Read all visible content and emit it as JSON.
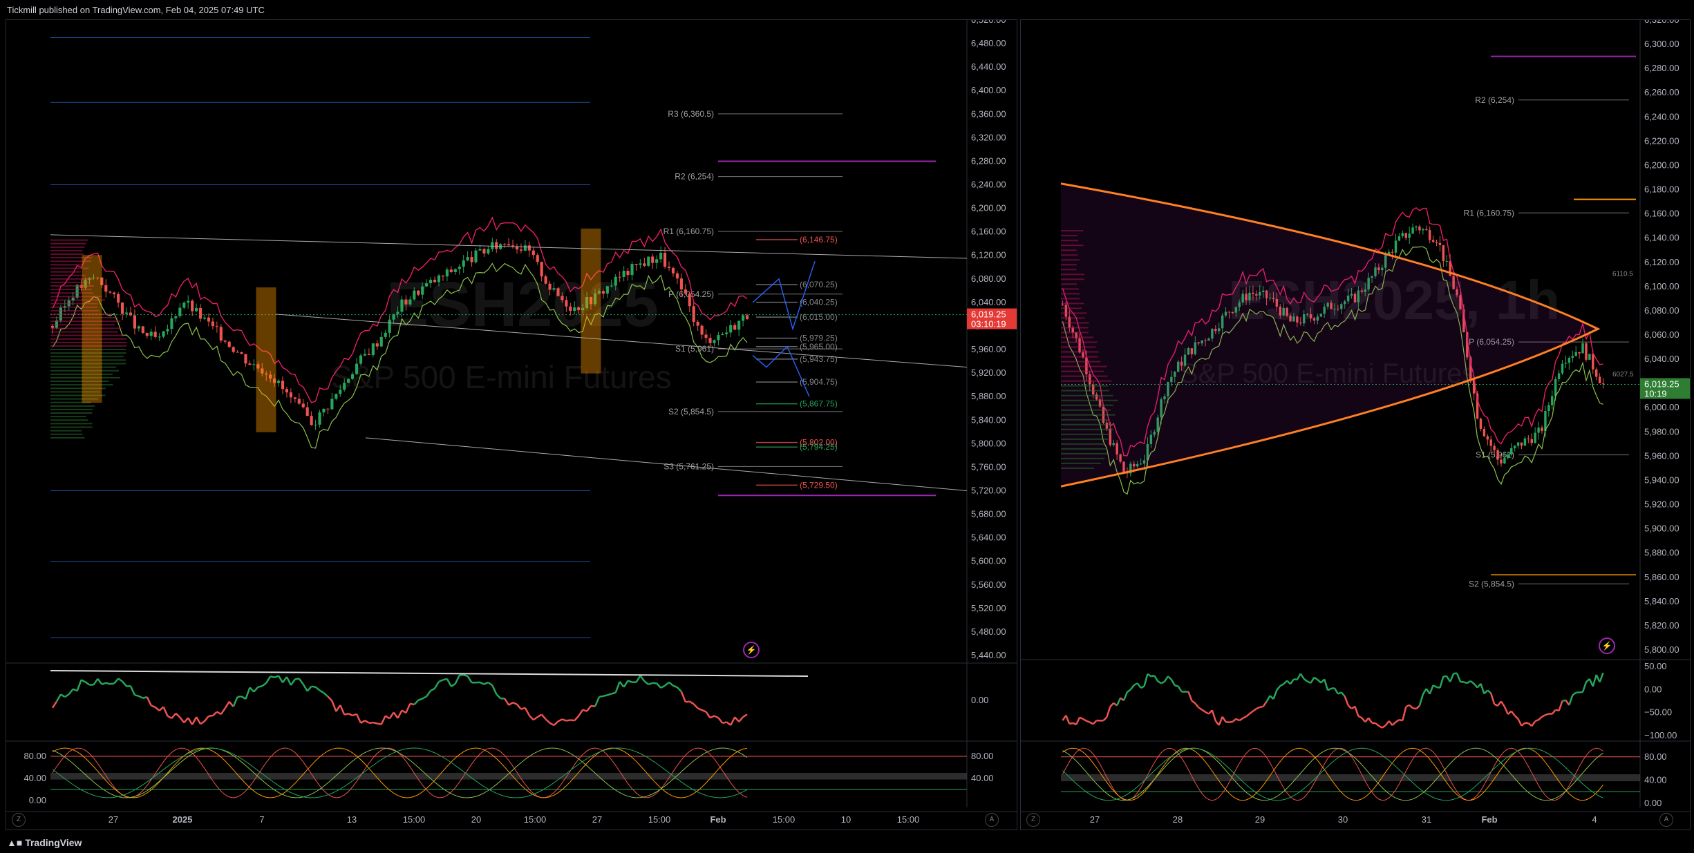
{
  "header": {
    "publisher": "Tickmill published on TradingView.com, Feb 04, 2025 07:49 UTC"
  },
  "footer": {
    "brand": "TradingView"
  },
  "colors": {
    "up": "#26a65b",
    "down": "#ef5350",
    "pivot": "#a9a9a9",
    "accent_orange": "#ff9800",
    "accent_magenta": "#e91e63",
    "accent_purple": "#9c27b0",
    "blue": "#2962ff"
  },
  "left_chart": {
    "watermark_symbol": "ESH2025",
    "watermark_name": "S&P 500 E-mini Futures",
    "price_labels": [
      "6,520.00",
      "6,480.00",
      "6,440.00",
      "6,400.00",
      "6,360.00",
      "6,320.00",
      "6,280.00",
      "6,240.00",
      "6,200.00",
      "6,160.00",
      "6,120.00",
      "6,080.00",
      "6,040.00",
      "6,000.00",
      "5,960.00",
      "5,920.00",
      "5,880.00",
      "5,840.00",
      "5,800.00",
      "5,760.00",
      "5,720.00",
      "5,680.00",
      "5,640.00",
      "5,600.00",
      "5,560.00",
      "5,520.00",
      "5,480.00",
      "5,440.00"
    ],
    "current_price": "6,019.25",
    "countdown": "03:10:19",
    "time_labels": [
      "27",
      "2025",
      "7",
      "13",
      "15:00",
      "20",
      "15:00",
      "27",
      "15:00",
      "Feb",
      "15:00",
      "10",
      "15:00"
    ],
    "pivots": [
      {
        "label": "R3 (6,360.5)",
        "value": 6360.5
      },
      {
        "label": "R2 (6,254)",
        "value": 6254
      },
      {
        "label": "R1 (6,160.75)",
        "value": 6160.75
      },
      {
        "label": "P (6,054.25)",
        "value": 6054.25
      },
      {
        "label": "S1 (5,961)",
        "value": 5961
      },
      {
        "label": "S2 (5,854.5)",
        "value": 5854.5
      },
      {
        "label": "S3 (5,761.25)",
        "value": 5761.25
      }
    ],
    "level_labels": [
      {
        "label": "(6,146.75)",
        "value": 6146.75,
        "color": "#ef5350"
      },
      {
        "label": "(6,070.25)",
        "value": 6070.25,
        "color": "#888888"
      },
      {
        "label": "(6,040.25)",
        "value": 6040.25,
        "color": "#888888"
      },
      {
        "label": "(6,015.00)",
        "value": 6015,
        "color": "#888888"
      },
      {
        "label": "(5,979.25)",
        "value": 5979.25,
        "color": "#888888"
      },
      {
        "label": "(5,965.00)",
        "value": 5965,
        "color": "#888888"
      },
      {
        "label": "(5,943.75)",
        "value": 5943.75,
        "color": "#888888"
      },
      {
        "label": "(5,904.75)",
        "value": 5904.75,
        "color": "#888888"
      },
      {
        "label": "(5,867.75)",
        "value": 5867.75,
        "color": "#26a65b"
      },
      {
        "label": "(5,802.00)",
        "value": 5802,
        "color": "#ef5350"
      },
      {
        "label": "(5,794.25)",
        "value": 5794.25,
        "color": "#26a65b"
      },
      {
        "label": "(5,729.50)",
        "value": 5729.5,
        "color": "#ef5350"
      }
    ],
    "osc1_label": "0.00",
    "osc2_labels": [
      "80.00",
      "40.00"
    ],
    "osc2_left_labels": [
      "80.00",
      "40.00",
      "0.00"
    ]
  },
  "right_chart": {
    "watermark_symbol": "ESH2025, 1h",
    "watermark_name": "S&P 500 E-mini Futures",
    "price_labels": [
      "6,320.00",
      "6,300.00",
      "6,280.00",
      "6,260.00",
      "6,240.00",
      "6,220.00",
      "6,200.00",
      "6,180.00",
      "6,160.00",
      "6,140.00",
      "6,120.00",
      "6,100.00",
      "6,080.00",
      "6,060.00",
      "6,040.00",
      "6,020.00",
      "6,000.00",
      "5,980.00",
      "5,960.00",
      "5,940.00",
      "5,920.00",
      "5,900.00",
      "5,880.00",
      "5,860.00",
      "5,840.00",
      "5,820.00",
      "5,800.00"
    ],
    "current_price": "6,019.25",
    "countdown": "10:19",
    "time_labels": [
      "27",
      "28",
      "29",
      "30",
      "31",
      "Feb",
      "4"
    ],
    "pivots": [
      {
        "label": "R2 (6,254)",
        "value": 6254
      },
      {
        "label": "R1 (6,160.75)",
        "value": 6160.75
      },
      {
        "label": "P (6,054.25)",
        "value": 6054.25
      },
      {
        "label": "S1 (5,961)",
        "value": 5961
      },
      {
        "label": "S2 (5,854.5)",
        "value": 5854.5
      }
    ],
    "small_labels": [
      {
        "label": "6110.5",
        "value": 6110.5
      },
      {
        "label": "6027.5",
        "value": 6027.5
      }
    ],
    "osc1_labels": [
      "50.00",
      "0.00",
      "−50.00",
      "−100.00"
    ],
    "osc2_labels": [
      "80.00",
      "40.00",
      "0.00"
    ]
  },
  "chart_data": [
    {
      "type": "candlestick",
      "title": "ESH2025",
      "subtitle": "S&P 500 E-mini Futures",
      "ylim": [
        5440,
        6520
      ],
      "x": [
        "27",
        "2025",
        "7",
        "13",
        "20",
        "27",
        "Feb"
      ],
      "close_path": [
        6000,
        6060,
        6085,
        6040,
        5990,
        5975,
        6045,
        6010,
        5975,
        5940,
        5920,
        5875,
        5835,
        5880,
        5935,
        5975,
        6035,
        6065,
        6085,
        6110,
        6130,
        6145,
        6125,
        6060,
        6030,
        6050,
        6080,
        6105,
        6120,
        6060,
        5975,
        5990,
        6019.25
      ],
      "last": 6019.25
    },
    {
      "type": "candlestick",
      "title": "ESH2025, 1h",
      "subtitle": "S&P 500 E-mini Futures",
      "ylim": [
        5800,
        6320
      ],
      "x": [
        "27",
        "28",
        "29",
        "30",
        "31",
        "Feb",
        "4"
      ],
      "close_path": [
        6085,
        6040,
        5985,
        5945,
        5960,
        6020,
        6045,
        6060,
        6080,
        6095,
        6090,
        6070,
        6075,
        6085,
        6090,
        6110,
        6135,
        6150,
        6140,
        6090,
        5990,
        5955,
        5970,
        5980,
        6040,
        6050,
        6019.25
      ],
      "last": 6019.25
    }
  ]
}
